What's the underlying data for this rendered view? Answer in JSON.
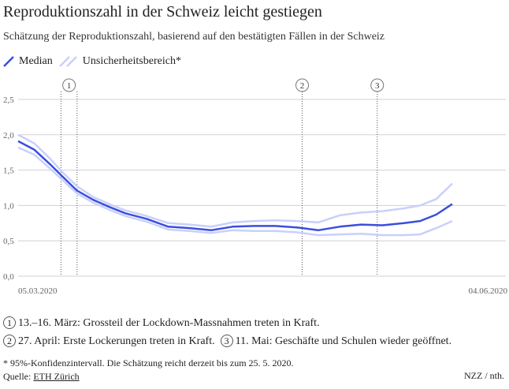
{
  "title": "Reproduktionszahl in der Schweiz leicht gestiegen",
  "subtitle": "Schätzung der Reproduktionszahl, basierend auf den bestätigten Fällen in der Schweiz",
  "colors": {
    "median": "#3a4fdc",
    "band": "#c9d0fb",
    "grid": "#d0d0d8"
  },
  "chart_data": {
    "type": "line",
    "title": "Reproduktionszahl in der Schweiz leicht gestiegen",
    "legend": [
      "Median",
      "Unsicherheitsbereich*"
    ],
    "legend_placement": "top-left",
    "grid": true,
    "ylim": [
      0,
      2.5
    ],
    "yticks": [
      "0,0",
      "0,5",
      "1,0",
      "1,5",
      "2,0",
      "2,5"
    ],
    "xticks": [
      "05.03.2020",
      "04.06.2020"
    ],
    "x_range_days_since_05_03_2020": [
      0,
      91
    ],
    "x": [
      "05.03",
      "08.03",
      "11.03",
      "13.03",
      "16.03",
      "19.03",
      "22.03",
      "25.03",
      "29.03",
      "02.04",
      "06.04",
      "10.04",
      "14.04",
      "18.04",
      "22.04",
      "26.04",
      "30.04",
      "04.05",
      "08.05",
      "12.05",
      "16.05",
      "19.05",
      "22.05",
      "25.05"
    ],
    "series": [
      {
        "name": "Median",
        "values": [
          1.91,
          1.79,
          1.58,
          1.43,
          1.21,
          1.08,
          0.98,
          0.89,
          0.81,
          0.7,
          0.68,
          0.65,
          0.7,
          0.71,
          0.71,
          0.69,
          0.65,
          0.7,
          0.73,
          0.72,
          0.75,
          0.78,
          0.87,
          1.02
        ]
      },
      {
        "name": "Unsicherheitsbereich* (oben)",
        "values": [
          2.0,
          1.88,
          1.66,
          1.49,
          1.27,
          1.12,
          1.02,
          0.93,
          0.85,
          0.75,
          0.73,
          0.7,
          0.76,
          0.78,
          0.79,
          0.78,
          0.76,
          0.86,
          0.9,
          0.92,
          0.96,
          1.0,
          1.09,
          1.31
        ]
      },
      {
        "name": "Unsicherheitsbereich* (unten)",
        "values": [
          1.82,
          1.72,
          1.52,
          1.38,
          1.17,
          1.04,
          0.94,
          0.85,
          0.77,
          0.66,
          0.64,
          0.61,
          0.65,
          0.64,
          0.64,
          0.62,
          0.58,
          0.59,
          0.6,
          0.58,
          0.58,
          0.59,
          0.68,
          0.78
        ]
      }
    ],
    "annotations": [
      {
        "label": "1",
        "dates": [
          "13.03",
          "16.03"
        ]
      },
      {
        "label": "2",
        "dates": [
          "27.04"
        ]
      },
      {
        "label": "3",
        "dates": [
          "11.05"
        ]
      }
    ]
  },
  "notes": [
    {
      "num": "1",
      "text": "13.–16. März: Grossteil der Lockdown-Massnahmen treten in Kraft."
    },
    {
      "num": "2",
      "text": "27. April: Erste Lockerungen treten in Kraft."
    },
    {
      "num": "3",
      "text": "11. Mai: Geschäfte und Schulen wieder geöffnet."
    }
  ],
  "footnote": "* 95%-Konfidenzintervall. Die Schätzung reicht derzeit bis zum 25. 5. 2020.",
  "source_label": "Quelle: ",
  "source_link": "ETH Zürich",
  "credit": "NZZ / nth."
}
